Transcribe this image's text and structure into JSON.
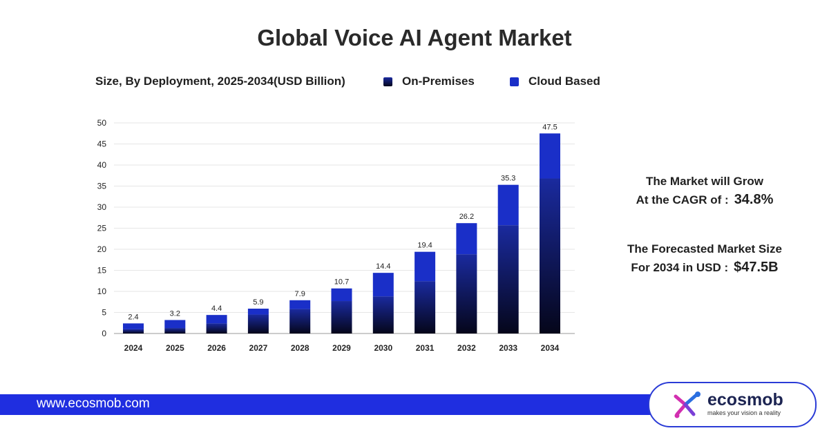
{
  "title": "Global Voice AI Agent Market",
  "subtitle": "Size, By Deployment, 2025-2034(USD Billion)",
  "legend": {
    "on_premises": "On-Premises",
    "cloud_based": "Cloud Based"
  },
  "colors": {
    "on_premises_top": "#1a2a9e",
    "on_premises_bottom": "#05061a",
    "cloud_based": "#1a2fc8",
    "footer_bar": "#1f2ee0"
  },
  "chart_data": {
    "type": "bar",
    "stacked": true,
    "categories": [
      "2024",
      "2025",
      "2026",
      "2027",
      "2028",
      "2029",
      "2030",
      "2031",
      "2032",
      "2033",
      "2034"
    ],
    "series": [
      {
        "name": "On-Premises",
        "values": [
          1.0,
          1.3,
          2.4,
          4.5,
          5.8,
          7.7,
          8.8,
          12.4,
          18.8,
          25.7,
          36.8
        ]
      },
      {
        "name": "Cloud Based",
        "values": [
          1.4,
          1.9,
          2.0,
          1.4,
          2.1,
          3.0,
          5.6,
          7.0,
          7.4,
          9.6,
          10.7
        ]
      }
    ],
    "totals": [
      "2.4",
      "3.2",
      "4.4",
      "5.9",
      "7.9",
      "10.7",
      "14.4",
      "19.4",
      "26.2",
      "35.3",
      "47.5"
    ],
    "y_ticks": [
      "0",
      "5",
      "10",
      "15",
      "20",
      "25",
      "30",
      "35",
      "40",
      "45",
      "50"
    ],
    "ylim": [
      0,
      50
    ],
    "grid": true
  },
  "stats": {
    "cagr_line1": "The Market will Grow",
    "cagr_line2": "At the CAGR of :",
    "cagr_value": "34.8%",
    "size_line1": "The Forecasted Market Size",
    "size_line2": "For 2034 in USD :",
    "size_value": "$47.5B"
  },
  "footer": {
    "url": "www.ecosmob.com"
  },
  "logo": {
    "name": "ecosmob",
    "tagline": "makes your vision a reality",
    "icon": "ecosmob-logo-mark"
  }
}
